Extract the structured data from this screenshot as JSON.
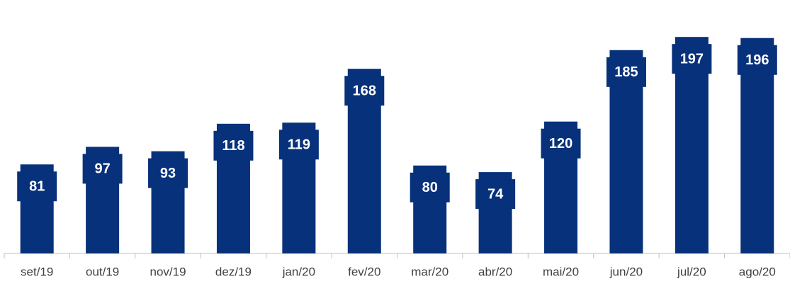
{
  "chart_data": {
    "type": "bar",
    "categories": [
      "set/19",
      "out/19",
      "nov/19",
      "dez/19",
      "jan/20",
      "fev/20",
      "mar/20",
      "abr/20",
      "mai/20",
      "jun/20",
      "jul/20",
      "ago/20"
    ],
    "values": [
      81,
      97,
      93,
      118,
      119,
      168,
      80,
      74,
      120,
      185,
      197,
      196
    ],
    "color": "#07317a",
    "ylim": [
      0,
      210
    ],
    "data_labels": true
  }
}
